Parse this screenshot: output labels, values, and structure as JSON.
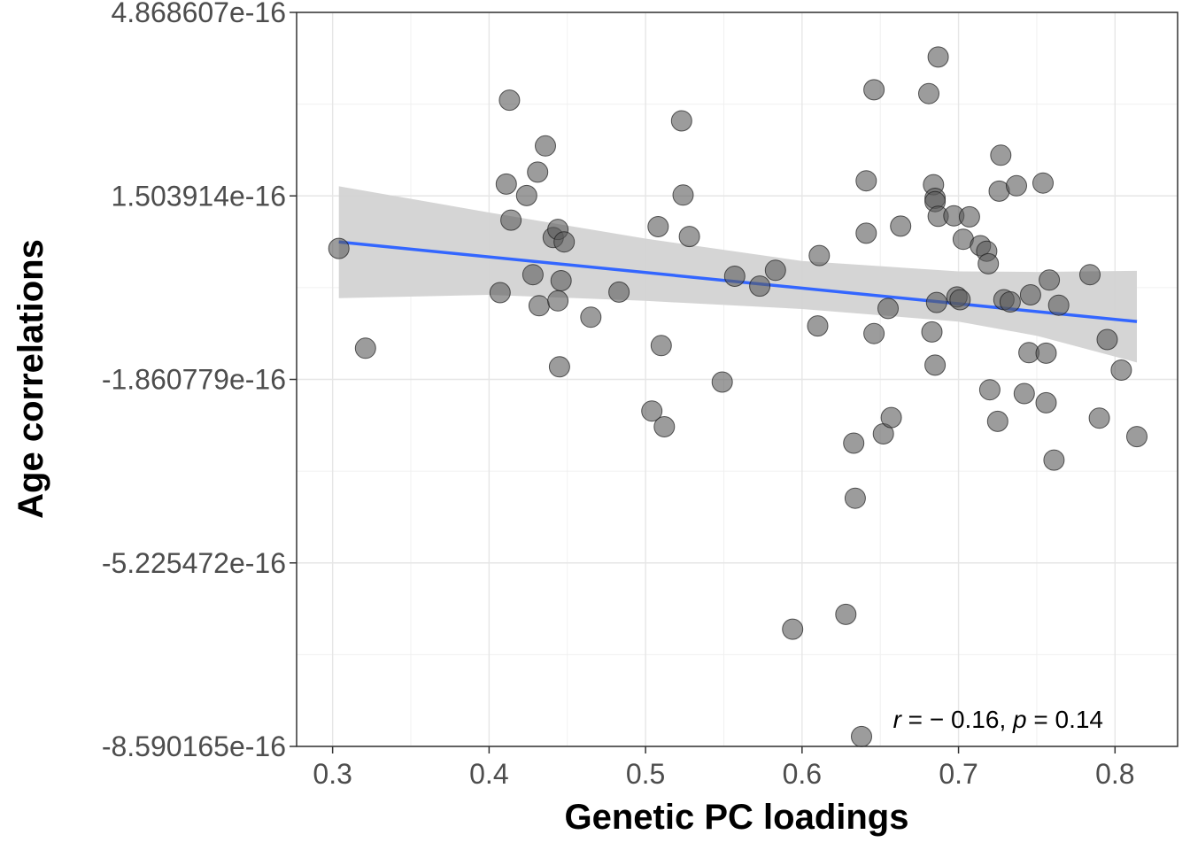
{
  "chart_data": {
    "type": "scatter",
    "xlabel": "Genetic PC loadings",
    "ylabel": "Age correlations",
    "xlim": [
      0.277,
      0.84
    ],
    "ylim": [
      -8.590165e-16,
      4.868607e-16
    ],
    "x_ticks": [
      {
        "value": 0.3,
        "label": "0.3"
      },
      {
        "value": 0.4,
        "label": "0.4"
      },
      {
        "value": 0.5,
        "label": "0.5"
      },
      {
        "value": 0.6,
        "label": "0.6"
      },
      {
        "value": 0.7,
        "label": "0.7"
      },
      {
        "value": 0.8,
        "label": "0.8"
      }
    ],
    "y_ticks": [
      {
        "value": 4.868607e-16,
        "label": "4.868607e-16"
      },
      {
        "value": 1.503914e-16,
        "label": "1.503914e-16"
      },
      {
        "value": -1.860779e-16,
        "label": "-1.860779e-16"
      },
      {
        "value": -5.225472e-16,
        "label": "-5.225472e-16"
      },
      {
        "value": -8.590165e-16,
        "label": "-8.590165e-16"
      }
    ],
    "grid": true,
    "point_color": "#5a5a5a",
    "fit_color": "#3366ff",
    "ci_color": "#d3d3d3",
    "points": [
      [
        0.304,
        5.4e-17
      ],
      [
        0.321,
        -1.29e-16
      ],
      [
        0.407,
        -2.7e-17
      ],
      [
        0.411,
        1.72e-16
      ],
      [
        0.413,
        3.26e-16
      ],
      [
        0.414,
        1.06e-16
      ],
      [
        0.424,
        1.51e-16
      ],
      [
        0.428,
        6e-18
      ],
      [
        0.431,
        1.94e-16
      ],
      [
        0.432,
        -5.1e-17
      ],
      [
        0.436,
        2.42e-16
      ],
      [
        0.441,
        7.4e-17
      ],
      [
        0.444,
        -4.2e-17
      ],
      [
        0.444,
        8.9e-17
      ],
      [
        0.446,
        -5e-18
      ],
      [
        0.445,
        -1.63e-16
      ],
      [
        0.448,
        6.6e-17
      ],
      [
        0.465,
        -7.2e-17
      ],
      [
        0.483,
        -2.6e-17
      ],
      [
        0.504,
        -2.44e-16
      ],
      [
        0.508,
        9.4e-17
      ],
      [
        0.51,
        -1.24e-16
      ],
      [
        0.512,
        -2.73e-16
      ],
      [
        0.523,
        2.88e-16
      ],
      [
        0.524,
        1.52e-16
      ],
      [
        0.528,
        7.6e-17
      ],
      [
        0.549,
        -1.91e-16
      ],
      [
        0.557,
        3e-18
      ],
      [
        0.573,
        -1.5e-17
      ],
      [
        0.583,
        1.4e-17
      ],
      [
        0.594,
        -6.44e-16
      ],
      [
        0.61,
        -8.8e-17
      ],
      [
        0.611,
        4.1e-17
      ],
      [
        0.628,
        -6.17e-16
      ],
      [
        0.633,
        -3.03e-16
      ],
      [
        0.634,
        -4.04e-16
      ],
      [
        0.638,
        -8.41e-16
      ],
      [
        0.641,
        1.78e-16
      ],
      [
        0.641,
        8.2e-17
      ],
      [
        0.646,
        3.45e-16
      ],
      [
        0.646,
        -1.02e-16
      ],
      [
        0.652,
        -2.86e-16
      ],
      [
        0.655,
        -5.6e-17
      ],
      [
        0.657,
        -2.56e-16
      ],
      [
        0.663,
        9.5e-17
      ],
      [
        0.681,
        3.38e-16
      ],
      [
        0.683,
        -9.9e-17
      ],
      [
        0.684,
        1.71e-16
      ],
      [
        0.685,
        1.46e-16
      ],
      [
        0.685,
        1.4e-16
      ],
      [
        0.685,
        -1.6e-16
      ],
      [
        0.686,
        -4.5e-17
      ],
      [
        0.687,
        4.05e-16
      ],
      [
        0.687,
        1.13e-16
      ],
      [
        0.697,
        1.14e-16
      ],
      [
        0.699,
        -3.5e-17
      ],
      [
        0.701,
        -4e-17
      ],
      [
        0.703,
        7.1e-17
      ],
      [
        0.707,
        1.12e-16
      ],
      [
        0.714,
        5.9e-17
      ],
      [
        0.718,
        4.9e-17
      ],
      [
        0.719,
        2.6e-17
      ],
      [
        0.72,
        -2.05e-16
      ],
      [
        0.725,
        -2.63e-16
      ],
      [
        0.726,
        1.59e-16
      ],
      [
        0.727,
        2.25e-16
      ],
      [
        0.729,
        -4e-17
      ],
      [
        0.733,
        -4.4e-17
      ],
      [
        0.737,
        1.69e-16
      ],
      [
        0.742,
        -2.12e-16
      ],
      [
        0.745,
        -1.37e-16
      ],
      [
        0.746,
        -3.1e-17
      ],
      [
        0.754,
        1.74e-16
      ],
      [
        0.756,
        -1.38e-16
      ],
      [
        0.756,
        -2.29e-16
      ],
      [
        0.758,
        -4e-18
      ],
      [
        0.761,
        -3.34e-16
      ],
      [
        0.764,
        -5e-17
      ],
      [
        0.784,
        6e-18
      ],
      [
        0.79,
        -2.57e-16
      ],
      [
        0.795,
        -1.13e-16
      ],
      [
        0.804,
        -1.69e-16
      ],
      [
        0.814,
        -2.91e-16
      ]
    ],
    "fit_line": {
      "x": [
        0.304,
        0.814
      ],
      "y": [
        6.6e-17,
        -8e-17
      ]
    },
    "ci_band": {
      "x": [
        0.304,
        0.4,
        0.5,
        0.6,
        0.7,
        0.75,
        0.814
      ],
      "upper": [
        1.68e-16,
        1.2e-16,
        7.2e-17,
        3.1e-17,
        1.2e-17,
        1.1e-17,
        1.3e-17
      ],
      "lower": [
        -3.7e-17,
        -3.1e-17,
        -4.2e-17,
        -5.7e-17,
        -8e-17,
        -1.06e-16,
        -1.55e-16
      ]
    },
    "annotation": {
      "r": "r",
      "r_text": " = − 0.16, ",
      "p": "p",
      "p_text": " = 0.14"
    }
  }
}
